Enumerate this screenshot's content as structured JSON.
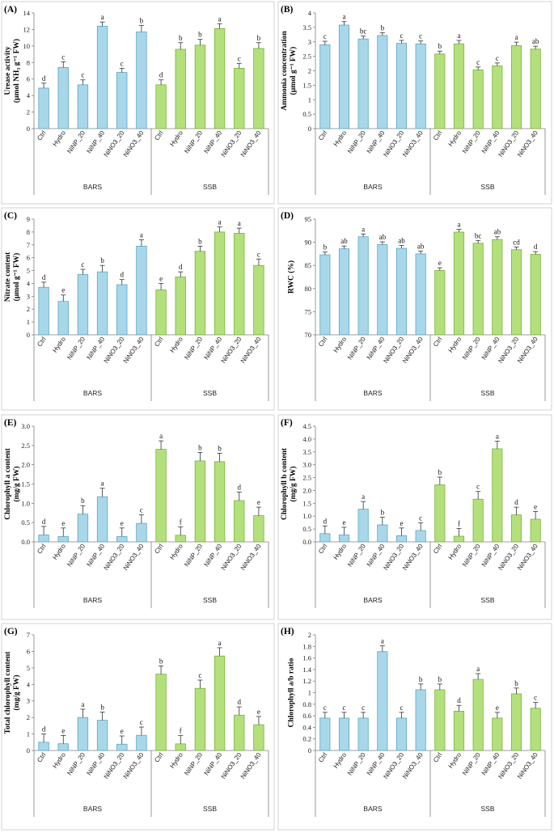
{
  "colors": {
    "bars_fill": "#a9d7ea",
    "bars_stroke": "#5aa7c6",
    "ssb_fill": "#b4e07c",
    "ssb_stroke": "#79b23c",
    "axis": "#808080"
  },
  "chart_data": [
    {
      "panel_label": "(A)",
      "type": "bar",
      "ylabel_lines": [
        "Urease activity",
        "(μmol NH₃ g⁻¹ FW)"
      ],
      "ylim": [
        0,
        14
      ],
      "ytick_step": 2,
      "yticks": [
        "0",
        "2",
        "4",
        "6",
        "8",
        "10",
        "12",
        "14"
      ],
      "groups": [
        "BARS",
        "SSB"
      ],
      "categories": [
        "Ctrl",
        "Hydro",
        "NiNP_20",
        "NiNP_40",
        "NiNO3_20",
        "NiNO3_40"
      ],
      "series": [
        {
          "name": "BARS",
          "values": [
            4.9,
            7.4,
            5.3,
            12.4,
            6.8,
            11.7
          ],
          "errors": [
            0.6,
            0.7,
            0.6,
            0.5,
            0.5,
            0.8
          ],
          "letters": [
            "d",
            "c",
            "c",
            "a",
            "c",
            "b"
          ]
        },
        {
          "name": "SSB",
          "values": [
            5.3,
            9.6,
            10.1,
            12.1,
            7.3,
            9.7
          ],
          "errors": [
            0.6,
            0.8,
            0.7,
            0.6,
            0.6,
            0.7
          ],
          "letters": [
            "d",
            "b",
            "b",
            "a",
            "c",
            "b"
          ]
        }
      ]
    },
    {
      "panel_label": "(B)",
      "type": "bar",
      "ylabel_lines": [
        "Ammonia concentration",
        "(μmol g⁻¹ FW)"
      ],
      "ylim": [
        0,
        4
      ],
      "ytick_step": 0.5,
      "yticks": [
        "0",
        "0.5",
        "1",
        "1.5",
        "2",
        "2.5",
        "3",
        "3.5",
        "4"
      ],
      "groups": [
        "BARS",
        "SSB"
      ],
      "categories": [
        "Ctrl",
        "Hydro",
        "NiNP_20",
        "NiNP_40",
        "NiNO3_20",
        "NiNO3_40"
      ],
      "series": [
        {
          "name": "BARS",
          "values": [
            2.9,
            3.58,
            3.1,
            3.22,
            2.95,
            2.93
          ],
          "errors": [
            0.12,
            0.12,
            0.1,
            0.1,
            0.1,
            0.1
          ],
          "letters": [
            "c",
            "a",
            "bc",
            "b",
            "c",
            "c"
          ]
        },
        {
          "name": "SSB",
          "values": [
            2.58,
            2.93,
            2.03,
            2.17,
            2.87,
            2.75
          ],
          "errors": [
            0.1,
            0.12,
            0.1,
            0.1,
            0.12,
            0.1
          ],
          "letters": [
            "b",
            "a",
            "c",
            "c",
            "a",
            "ab"
          ]
        }
      ]
    },
    {
      "panel_label": "(C)",
      "type": "bar",
      "ylabel_lines": [
        "Nitrate content",
        "(μmol g⁻¹ FW)"
      ],
      "ylim": [
        0,
        9
      ],
      "ytick_step": 1,
      "yticks": [
        "0",
        "1",
        "2",
        "3",
        "4",
        "5",
        "6",
        "7",
        "8",
        "9"
      ],
      "groups": [
        "BARS",
        "SSB"
      ],
      "categories": [
        "Ctrl",
        "Hydro",
        "NiNP_20",
        "NiNP_40",
        "NiNO3_20",
        "NiNO3_40"
      ],
      "series": [
        {
          "name": "BARS",
          "values": [
            3.7,
            2.6,
            4.7,
            4.9,
            3.9,
            6.9
          ],
          "errors": [
            0.4,
            0.5,
            0.4,
            0.5,
            0.4,
            0.5
          ],
          "letters": [
            "d",
            "e",
            "c",
            "b",
            "d",
            "a"
          ]
        },
        {
          "name": "SSB",
          "values": [
            3.5,
            4.5,
            6.5,
            8.0,
            7.9,
            5.4
          ],
          "errors": [
            0.5,
            0.4,
            0.4,
            0.4,
            0.4,
            0.5
          ],
          "letters": [
            "e",
            "d",
            "b",
            "a",
            "a",
            "c"
          ]
        }
      ]
    },
    {
      "panel_label": "(D)",
      "type": "bar",
      "ylabel_lines": [
        "RWC (%)"
      ],
      "ylim": [
        70,
        95
      ],
      "ytick_step": 5,
      "yticks": [
        "70",
        "75",
        "80",
        "85",
        "90",
        "95"
      ],
      "groups": [
        "BARS",
        "SSB"
      ],
      "categories": [
        "Ctrl",
        "Hydro",
        "NiNP_20",
        "NiNP_40",
        "NiNO3_20",
        "NiNO3_40"
      ],
      "series": [
        {
          "name": "BARS",
          "values": [
            87.3,
            88.6,
            91.2,
            89.5,
            88.7,
            87.5
          ],
          "errors": [
            0.6,
            0.6,
            0.6,
            0.6,
            0.6,
            0.6
          ],
          "letters": [
            "b",
            "ab",
            "a",
            "ab",
            "ab",
            "ab"
          ]
        },
        {
          "name": "SSB",
          "values": [
            83.9,
            92.2,
            89.8,
            90.6,
            88.4,
            87.4
          ],
          "errors": [
            0.6,
            0.6,
            0.6,
            0.6,
            0.6,
            0.6
          ],
          "letters": [
            "e",
            "a",
            "bc",
            "ab",
            "cd",
            "d"
          ]
        }
      ]
    },
    {
      "panel_label": "(E)",
      "type": "bar",
      "ylabel_lines": [
        "Chlorophyll a content",
        "(mg/g FW)"
      ],
      "ylim": [
        0,
        3
      ],
      "ytick_step": 0.5,
      "yticks": [
        "0.0",
        "0.5",
        "1.0",
        "1.5",
        "2.0",
        "2.5",
        "3.0"
      ],
      "groups": [
        "BARS",
        "SSB"
      ],
      "categories": [
        "Ctrl",
        "Hydro",
        "NiNP_20",
        "NiNP_40",
        "NiNO3_20",
        "NiNO3_40"
      ],
      "series": [
        {
          "name": "BARS",
          "values": [
            0.18,
            0.14,
            0.72,
            1.17,
            0.14,
            0.48
          ],
          "errors": [
            0.22,
            0.22,
            0.22,
            0.22,
            0.22,
            0.22
          ],
          "letters": [
            "d",
            "e",
            "b",
            "a",
            "e",
            "c"
          ]
        },
        {
          "name": "SSB",
          "values": [
            2.4,
            0.17,
            2.1,
            2.08,
            1.07,
            0.68
          ],
          "errors": [
            0.22,
            0.22,
            0.22,
            0.22,
            0.22,
            0.22
          ],
          "letters": [
            "a",
            "f",
            "b",
            "b",
            "d",
            "e"
          ]
        }
      ]
    },
    {
      "panel_label": "(F)",
      "type": "bar",
      "ylabel_lines": [
        "Chlorophyll b content",
        "(mg/g FW)"
      ],
      "ylim": [
        0,
        4.5
      ],
      "ytick_step": 0.5,
      "yticks": [
        "0.0",
        "0.5",
        "1.0",
        "1.5",
        "2.0",
        "2.5",
        "3.0",
        "3.5",
        "4.0",
        "4.5"
      ],
      "groups": [
        "BARS",
        "SSB"
      ],
      "categories": [
        "Ctrl",
        "Hydro",
        "NiNP_20",
        "NiNP_40",
        "NiNO3_20",
        "NiNO3_40"
      ],
      "series": [
        {
          "name": "BARS",
          "values": [
            0.32,
            0.27,
            1.27,
            0.66,
            0.24,
            0.44
          ],
          "errors": [
            0.3,
            0.3,
            0.3,
            0.3,
            0.3,
            0.3
          ],
          "letters": [
            "d",
            "e",
            "a",
            "b",
            "e",
            "c"
          ]
        },
        {
          "name": "SSB",
          "values": [
            2.22,
            0.22,
            1.66,
            3.62,
            1.05,
            0.88
          ],
          "errors": [
            0.3,
            0.3,
            0.3,
            0.3,
            0.3,
            0.3
          ],
          "letters": [
            "b",
            "f",
            "c",
            "a",
            "d",
            "e"
          ]
        }
      ]
    },
    {
      "panel_label": "(G)",
      "type": "bar",
      "ylabel_lines": [
        "Total chlorophyll content",
        "(mg/g FW)"
      ],
      "ylim": [
        0,
        7
      ],
      "ytick_step": 1,
      "yticks": [
        "0",
        "1",
        "2",
        "3",
        "4",
        "5",
        "6",
        "7"
      ],
      "groups": [
        "BARS",
        "SSB"
      ],
      "categories": [
        "Ctrl",
        "Hydro",
        "NiNP_20",
        "NiNP_40",
        "NiNO3_20",
        "NiNO3_40"
      ],
      "series": [
        {
          "name": "BARS",
          "values": [
            0.5,
            0.41,
            2.0,
            1.83,
            0.38,
            0.92
          ],
          "errors": [
            0.5,
            0.5,
            0.5,
            0.5,
            0.5,
            0.5
          ],
          "letters": [
            "d",
            "e",
            "a",
            "b",
            "e",
            "c"
          ]
        },
        {
          "name": "SSB",
          "values": [
            4.62,
            0.4,
            3.76,
            5.72,
            2.14,
            1.56
          ],
          "errors": [
            0.5,
            0.5,
            0.5,
            0.5,
            0.5,
            0.5
          ],
          "letters": [
            "b",
            "f",
            "c",
            "a",
            "d",
            "e"
          ]
        }
      ]
    },
    {
      "panel_label": "(H)",
      "type": "bar",
      "ylabel_lines": [
        "Chlorophyll a/b ratio"
      ],
      "ylim": [
        0,
        2
      ],
      "ytick_step": 0.2,
      "yticks": [
        "0",
        "0.2",
        "0.4",
        "0.6",
        "0.8",
        "1",
        "1.2",
        "1.4",
        "1.6",
        "1.8",
        "2"
      ],
      "groups": [
        "BARS",
        "SSB"
      ],
      "categories": [
        "Ctrl",
        "Hydro",
        "NiNP_20",
        "NiNP_40",
        "NiNO3_20",
        "NiNO3_40"
      ],
      "series": [
        {
          "name": "BARS",
          "values": [
            0.56,
            0.56,
            0.56,
            1.71,
            0.56,
            1.05
          ],
          "errors": [
            0.1,
            0.1,
            0.1,
            0.1,
            0.1,
            0.1
          ],
          "letters": [
            "c",
            "c",
            "c",
            "a",
            "c",
            "b"
          ]
        },
        {
          "name": "SSB",
          "values": [
            1.05,
            0.68,
            1.23,
            0.56,
            0.98,
            0.73
          ],
          "errors": [
            0.1,
            0.1,
            0.1,
            0.1,
            0.1,
            0.1
          ],
          "letters": [
            "b",
            "d",
            "a",
            "e",
            "b",
            "c"
          ]
        }
      ]
    }
  ]
}
